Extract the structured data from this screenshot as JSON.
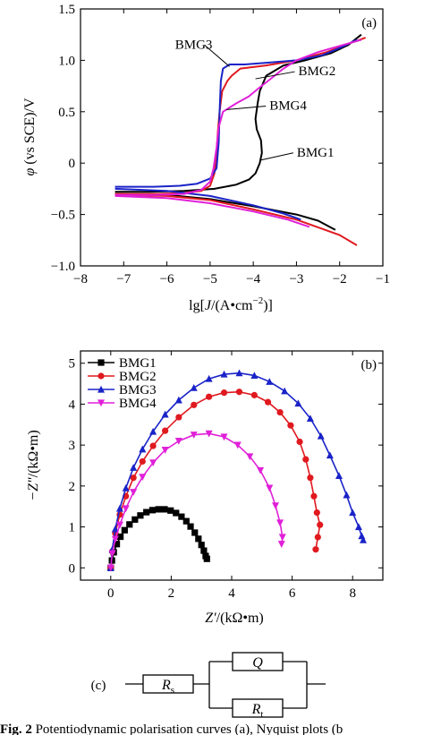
{
  "chart_data": [
    {
      "panel": "(a)",
      "type": "line",
      "xlabel_prefix": "lg[",
      "xlabel_var": "J",
      "xlabel_suffix": "/(A•cm",
      "xlabel_sup": "−2",
      "xlabel_end": ")]",
      "ylabel_var": "φ",
      "ylabel_rest": " (vs SCE)/V",
      "xlim": [
        -8,
        -1
      ],
      "ylim": [
        -1.0,
        1.5
      ],
      "xticks": [
        -8,
        -7,
        -6,
        -5,
        -4,
        -3,
        -2,
        -1
      ],
      "xtick_labels": [
        "−8",
        "−7",
        "−6",
        "−5",
        "−4",
        "−3",
        "−2",
        "−1"
      ],
      "yticks": [
        -1.0,
        -0.5,
        0,
        0.5,
        1.0,
        1.5
      ],
      "ytick_labels": [
        "−1.0",
        "−0.5",
        "0",
        "0.5",
        "1.0",
        "1.5"
      ],
      "series": [
        {
          "name": "BMG1",
          "color": "#000000",
          "anodic": [
            [
              -7.2,
              -0.28
            ],
            [
              -6.4,
              -0.28
            ],
            [
              -5.6,
              -0.27
            ],
            [
              -4.9,
              -0.25
            ],
            [
              -4.4,
              -0.21
            ],
            [
              -4.1,
              -0.16
            ],
            [
              -3.95,
              -0.1
            ],
            [
              -3.85,
              0.0
            ],
            [
              -3.8,
              0.1
            ],
            [
              -3.82,
              0.22
            ],
            [
              -3.92,
              0.33
            ],
            [
              -3.95,
              0.43
            ],
            [
              -3.9,
              0.58
            ],
            [
              -3.85,
              0.7
            ],
            [
              -3.7,
              0.85
            ],
            [
              -3.3,
              0.95
            ],
            [
              -2.8,
              1.0
            ],
            [
              -2.2,
              1.07
            ],
            [
              -1.8,
              1.15
            ],
            [
              -1.5,
              1.25
            ]
          ],
          "cathodic": [
            [
              -7.2,
              -0.3
            ],
            [
              -6.0,
              -0.31
            ],
            [
              -5.0,
              -0.35
            ],
            [
              -4.0,
              -0.42
            ],
            [
              -3.0,
              -0.5
            ],
            [
              -2.5,
              -0.56
            ],
            [
              -2.1,
              -0.65
            ]
          ]
        },
        {
          "name": "BMG2",
          "color": "#e0191f",
          "anodic": [
            [
              -7.2,
              -0.3
            ],
            [
              -6.2,
              -0.3
            ],
            [
              -5.6,
              -0.29
            ],
            [
              -5.2,
              -0.27
            ],
            [
              -5.0,
              -0.22
            ],
            [
              -4.9,
              -0.1
            ],
            [
              -4.85,
              0.1
            ],
            [
              -4.82,
              0.3
            ],
            [
              -4.78,
              0.5
            ],
            [
              -4.72,
              0.7
            ],
            [
              -4.6,
              0.8
            ],
            [
              -4.5,
              0.85
            ],
            [
              -4.3,
              0.92
            ],
            [
              -3.7,
              0.95
            ],
            [
              -3.0,
              1.0
            ],
            [
              -2.3,
              1.08
            ],
            [
              -1.8,
              1.16
            ],
            [
              -1.4,
              1.22
            ]
          ],
          "cathodic": [
            [
              -7.2,
              -0.31
            ],
            [
              -6.0,
              -0.32
            ],
            [
              -5.0,
              -0.36
            ],
            [
              -4.0,
              -0.45
            ],
            [
              -3.0,
              -0.55
            ],
            [
              -2.0,
              -0.7
            ],
            [
              -1.6,
              -0.8
            ]
          ]
        },
        {
          "name": "BMG3",
          "color": "#1a23c8",
          "anodic": [
            [
              -7.2,
              -0.23
            ],
            [
              -6.3,
              -0.23
            ],
            [
              -5.7,
              -0.22
            ],
            [
              -5.3,
              -0.2
            ],
            [
              -5.0,
              -0.15
            ],
            [
              -4.85,
              -0.05
            ],
            [
              -4.8,
              0.2
            ],
            [
              -4.78,
              0.5
            ],
            [
              -4.75,
              0.8
            ],
            [
              -4.7,
              0.92
            ],
            [
              -4.55,
              0.96
            ],
            [
              -4.2,
              0.96
            ],
            [
              -3.6,
              0.98
            ],
            [
              -3.0,
              1.0
            ],
            [
              -2.4,
              1.05
            ],
            [
              -2.0,
              1.12
            ],
            [
              -1.6,
              1.2
            ]
          ],
          "cathodic": [
            [
              -7.2,
              -0.25
            ],
            [
              -6.0,
              -0.27
            ],
            [
              -5.0,
              -0.32
            ],
            [
              -4.0,
              -0.41
            ],
            [
              -3.3,
              -0.49
            ],
            [
              -2.9,
              -0.55
            ]
          ]
        },
        {
          "name": "BMG4",
          "color": "#e020d8",
          "anodic": [
            [
              -7.2,
              -0.31
            ],
            [
              -6.3,
              -0.31
            ],
            [
              -5.6,
              -0.3
            ],
            [
              -5.2,
              -0.26
            ],
            [
              -5.0,
              -0.18
            ],
            [
              -4.92,
              -0.05
            ],
            [
              -4.85,
              0.15
            ],
            [
              -4.8,
              0.35
            ],
            [
              -4.7,
              0.5
            ],
            [
              -4.4,
              0.58
            ],
            [
              -4.1,
              0.65
            ],
            [
              -3.9,
              0.72
            ],
            [
              -3.6,
              0.82
            ],
            [
              -3.3,
              0.92
            ],
            [
              -3.0,
              1.0
            ],
            [
              -2.5,
              1.08
            ],
            [
              -2.0,
              1.14
            ],
            [
              -1.5,
              1.2
            ]
          ],
          "cathodic": [
            [
              -7.2,
              -0.32
            ],
            [
              -6.0,
              -0.34
            ],
            [
              -5.0,
              -0.39
            ],
            [
              -4.0,
              -0.47
            ],
            [
              -3.2,
              -0.55
            ],
            [
              -2.7,
              -0.62
            ]
          ]
        }
      ],
      "annotations": [
        {
          "text": "BMG3",
          "anchor": [
            -4.55,
            0.94
          ]
        },
        {
          "text": "BMG2",
          "anchor": [
            -3.95,
            0.82
          ]
        },
        {
          "text": "BMG4",
          "anchor": [
            -4.62,
            0.52
          ]
        },
        {
          "text": "BMG1",
          "anchor": [
            -3.82,
            0.03
          ]
        }
      ]
    },
    {
      "panel": "(b)",
      "type": "scatter",
      "xlabel_var": "Z′",
      "xlabel_rest": "/(kΩ•m)",
      "ylabel_var": "−Z″",
      "ylabel_rest": "/(kΩ•m)",
      "xlim": [
        -1,
        9
      ],
      "ylim": [
        -0.3,
        5.3
      ],
      "xticks": [
        0,
        2,
        4,
        6,
        8
      ],
      "xtick_labels": [
        "0",
        "2",
        "4",
        "6",
        "8"
      ],
      "yticks": [
        0,
        1,
        2,
        3,
        4,
        5
      ],
      "ytick_labels": [
        "0",
        "1",
        "2",
        "3",
        "4",
        "5"
      ],
      "legend_position": "top-left",
      "series": [
        {
          "name": "BMG1",
          "color": "#000000",
          "marker": "square",
          "points": [
            [
              0,
              0
            ],
            [
              0.04,
              0.18
            ],
            [
              0.1,
              0.38
            ],
            [
              0.2,
              0.58
            ],
            [
              0.32,
              0.76
            ],
            [
              0.46,
              0.92
            ],
            [
              0.62,
              1.06
            ],
            [
              0.8,
              1.18
            ],
            [
              0.98,
              1.28
            ],
            [
              1.18,
              1.36
            ],
            [
              1.38,
              1.41
            ],
            [
              1.58,
              1.43
            ],
            [
              1.78,
              1.43
            ],
            [
              1.98,
              1.4
            ],
            [
              2.16,
              1.34
            ],
            [
              2.34,
              1.25
            ],
            [
              2.5,
              1.14
            ],
            [
              2.64,
              1.01
            ],
            [
              2.78,
              0.86
            ],
            [
              2.9,
              0.71
            ],
            [
              3.0,
              0.56
            ],
            [
              3.08,
              0.42
            ],
            [
              3.14,
              0.29
            ],
            [
              3.18,
              0.22
            ]
          ]
        },
        {
          "name": "BMG2",
          "color": "#e0191f",
          "marker": "circle",
          "points": [
            [
              0,
              0
            ],
            [
              0.05,
              0.4
            ],
            [
              0.15,
              0.85
            ],
            [
              0.3,
              1.3
            ],
            [
              0.5,
              1.75
            ],
            [
              0.75,
              2.2
            ],
            [
              1.05,
              2.6
            ],
            [
              1.4,
              2.98
            ],
            [
              1.8,
              3.35
            ],
            [
              2.25,
              3.68
            ],
            [
              2.75,
              3.98
            ],
            [
              3.25,
              4.18
            ],
            [
              3.75,
              4.28
            ],
            [
              4.25,
              4.3
            ],
            [
              4.75,
              4.22
            ],
            [
              5.2,
              4.05
            ],
            [
              5.6,
              3.8
            ],
            [
              5.95,
              3.48
            ],
            [
              6.25,
              3.08
            ],
            [
              6.45,
              2.65
            ],
            [
              6.6,
              2.2
            ],
            [
              6.72,
              1.75
            ],
            [
              6.82,
              1.35
            ],
            [
              6.92,
              1.05
            ],
            [
              6.85,
              0.75
            ],
            [
              6.78,
              0.45
            ]
          ]
        },
        {
          "name": "BMG3",
          "color": "#1a23c8",
          "marker": "triangle-up",
          "points": [
            [
              0,
              0
            ],
            [
              0.05,
              0.45
            ],
            [
              0.15,
              0.95
            ],
            [
              0.3,
              1.45
            ],
            [
              0.5,
              1.95
            ],
            [
              0.75,
              2.45
            ],
            [
              1.05,
              2.9
            ],
            [
              1.4,
              3.33
            ],
            [
              1.8,
              3.75
            ],
            [
              2.25,
              4.1
            ],
            [
              2.75,
              4.4
            ],
            [
              3.25,
              4.62
            ],
            [
              3.75,
              4.73
            ],
            [
              4.25,
              4.76
            ],
            [
              4.75,
              4.7
            ],
            [
              5.25,
              4.55
            ],
            [
              5.75,
              4.32
            ],
            [
              6.2,
              4.02
            ],
            [
              6.6,
              3.65
            ],
            [
              6.95,
              3.22
            ],
            [
              7.25,
              2.75
            ],
            [
              7.55,
              2.25
            ],
            [
              7.8,
              1.78
            ],
            [
              8.0,
              1.35
            ],
            [
              8.2,
              1.0
            ],
            [
              8.3,
              0.78
            ],
            [
              8.35,
              0.68
            ]
          ]
        },
        {
          "name": "BMG4",
          "color": "#e020d8",
          "marker": "triangle-down",
          "points": [
            [
              0,
              0
            ],
            [
              0.05,
              0.35
            ],
            [
              0.15,
              0.7
            ],
            [
              0.3,
              1.05
            ],
            [
              0.5,
              1.45
            ],
            [
              0.75,
              1.85
            ],
            [
              1.05,
              2.22
            ],
            [
              1.4,
              2.57
            ],
            [
              1.8,
              2.88
            ],
            [
              2.25,
              3.1
            ],
            [
              2.75,
              3.25
            ],
            [
              3.25,
              3.28
            ],
            [
              3.75,
              3.2
            ],
            [
              4.2,
              3.0
            ],
            [
              4.6,
              2.72
            ],
            [
              4.95,
              2.38
            ],
            [
              5.25,
              1.95
            ],
            [
              5.45,
              1.52
            ],
            [
              5.6,
              1.1
            ],
            [
              5.68,
              0.75
            ],
            [
              5.65,
              0.58
            ]
          ]
        }
      ]
    }
  ],
  "circuit": {
    "label": "(c)",
    "rs": {
      "main": "R",
      "sub": "s"
    },
    "q": "Q",
    "rt": {
      "main": "R",
      "sub": "t"
    }
  },
  "caption": {
    "bold": "Fig. 2",
    "text": " Potentiodynamic polarisation curves (a), Nyquist plots (b"
  }
}
